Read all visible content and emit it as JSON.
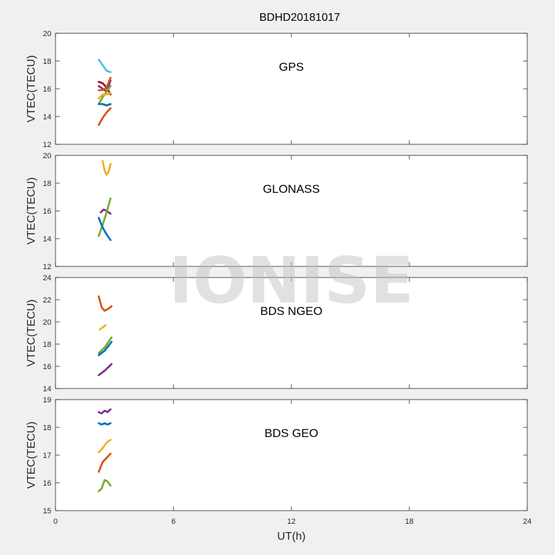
{
  "figure": {
    "title": "BDHD20181017",
    "xlabel": "UT(h)",
    "watermark": "IONISE"
  },
  "chart_data": [
    {
      "type": "line",
      "title": "GPS",
      "ylabel": "VTEC(TECU)",
      "xlim": [
        0,
        24
      ],
      "ylim": [
        12,
        20
      ],
      "yticks": [
        12,
        14,
        16,
        18,
        20
      ],
      "xticks": [
        0,
        6,
        12,
        18,
        24
      ],
      "series": [
        {
          "color": "#4DBEEE",
          "x": [
            2.2,
            2.4,
            2.6,
            2.8
          ],
          "y": [
            18.1,
            17.7,
            17.3,
            17.2
          ]
        },
        {
          "color": "#A2142F",
          "x": [
            2.2,
            2.4,
            2.6,
            2.8
          ],
          "y": [
            16.5,
            16.4,
            16.1,
            15.6
          ]
        },
        {
          "color": "#7E2F8E",
          "x": [
            2.2,
            2.4,
            2.6,
            2.8
          ],
          "y": [
            16.2,
            16.0,
            15.8,
            16.6
          ]
        },
        {
          "color": "#D95319",
          "x": [
            2.2,
            2.4,
            2.6,
            2.8
          ],
          "y": [
            15.9,
            15.9,
            16.1,
            16.8
          ]
        },
        {
          "color": "#77AC30",
          "x": [
            2.2,
            2.4,
            2.6,
            2.8
          ],
          "y": [
            14.9,
            15.4,
            15.8,
            16.2
          ]
        },
        {
          "color": "#EDB120",
          "x": [
            2.2,
            2.4,
            2.6,
            2.8
          ],
          "y": [
            15.3,
            15.6,
            15.6,
            15.7
          ]
        },
        {
          "color": "#0072BD",
          "x": [
            2.2,
            2.4,
            2.6,
            2.8
          ],
          "y": [
            14.9,
            14.9,
            14.8,
            14.9
          ]
        },
        {
          "color": "#D95319",
          "x": [
            2.2,
            2.4,
            2.6,
            2.8
          ],
          "y": [
            13.4,
            13.9,
            14.3,
            14.6
          ]
        }
      ]
    },
    {
      "type": "line",
      "title": "GLONASS",
      "ylabel": "VTEC(TECU)",
      "xlim": [
        0,
        24
      ],
      "ylim": [
        12,
        20
      ],
      "yticks": [
        12,
        14,
        16,
        18,
        20
      ],
      "xticks": [
        0,
        6,
        12,
        18,
        24
      ],
      "series": [
        {
          "color": "#EDB120",
          "x": [
            2.4,
            2.5,
            2.6,
            2.7,
            2.8
          ],
          "y": [
            19.6,
            18.9,
            18.6,
            18.8,
            19.4
          ]
        },
        {
          "color": "#7E2F8E",
          "x": [
            2.3,
            2.45,
            2.6,
            2.8
          ],
          "y": [
            15.9,
            16.1,
            16.0,
            15.8
          ]
        },
        {
          "color": "#77AC30",
          "x": [
            2.2,
            2.4,
            2.6,
            2.8
          ],
          "y": [
            14.2,
            15.0,
            15.9,
            16.9
          ]
        },
        {
          "color": "#0072BD",
          "x": [
            2.2,
            2.4,
            2.6,
            2.8
          ],
          "y": [
            15.5,
            14.8,
            14.3,
            13.9
          ]
        }
      ]
    },
    {
      "type": "line",
      "title": "BDS NGEO",
      "ylabel": "VTEC(TECU)",
      "xlim": [
        0,
        24
      ],
      "ylim": [
        14,
        24
      ],
      "yticks": [
        14,
        16,
        18,
        20,
        22,
        24
      ],
      "xticks": [
        0,
        6,
        12,
        18,
        24
      ],
      "series": [
        {
          "color": "#D95319",
          "x": [
            2.2,
            2.35,
            2.5,
            2.7,
            2.85
          ],
          "y": [
            22.3,
            21.3,
            21.0,
            21.2,
            21.4
          ]
        },
        {
          "color": "#EDB120",
          "x": [
            2.25,
            2.4,
            2.55
          ],
          "y": [
            19.3,
            19.5,
            19.7
          ]
        },
        {
          "color": "#77AC30",
          "x": [
            2.2,
            2.5,
            2.85
          ],
          "y": [
            17.2,
            17.7,
            18.6
          ]
        },
        {
          "color": "#0072BD",
          "x": [
            2.2,
            2.5,
            2.85
          ],
          "y": [
            17.0,
            17.4,
            18.2
          ]
        },
        {
          "color": "#7E2F8E",
          "x": [
            2.2,
            2.5,
            2.85
          ],
          "y": [
            15.2,
            15.6,
            16.2
          ]
        }
      ]
    },
    {
      "type": "line",
      "title": "BDS GEO",
      "ylabel": "VTEC(TECU)",
      "xlim": [
        0,
        24
      ],
      "ylim": [
        15,
        19
      ],
      "yticks": [
        15,
        16,
        17,
        18,
        19
      ],
      "xticks": [
        0,
        6,
        12,
        18,
        24
      ],
      "series": [
        {
          "color": "#7E2F8E",
          "x": [
            2.2,
            2.35,
            2.5,
            2.65,
            2.8
          ],
          "y": [
            18.55,
            18.5,
            18.6,
            18.55,
            18.65
          ]
        },
        {
          "color": "#0072BD",
          "x": [
            2.2,
            2.35,
            2.5,
            2.65,
            2.8
          ],
          "y": [
            18.15,
            18.1,
            18.15,
            18.1,
            18.15
          ]
        },
        {
          "color": "#EDB120",
          "x": [
            2.2,
            2.4,
            2.6,
            2.8
          ],
          "y": [
            17.1,
            17.25,
            17.45,
            17.55
          ]
        },
        {
          "color": "#D95319",
          "x": [
            2.2,
            2.4,
            2.6,
            2.8
          ],
          "y": [
            16.4,
            16.75,
            16.9,
            17.05
          ]
        },
        {
          "color": "#77AC30",
          "x": [
            2.2,
            2.35,
            2.5,
            2.65,
            2.8
          ],
          "y": [
            15.7,
            15.8,
            16.1,
            16.05,
            15.9
          ]
        }
      ]
    }
  ]
}
